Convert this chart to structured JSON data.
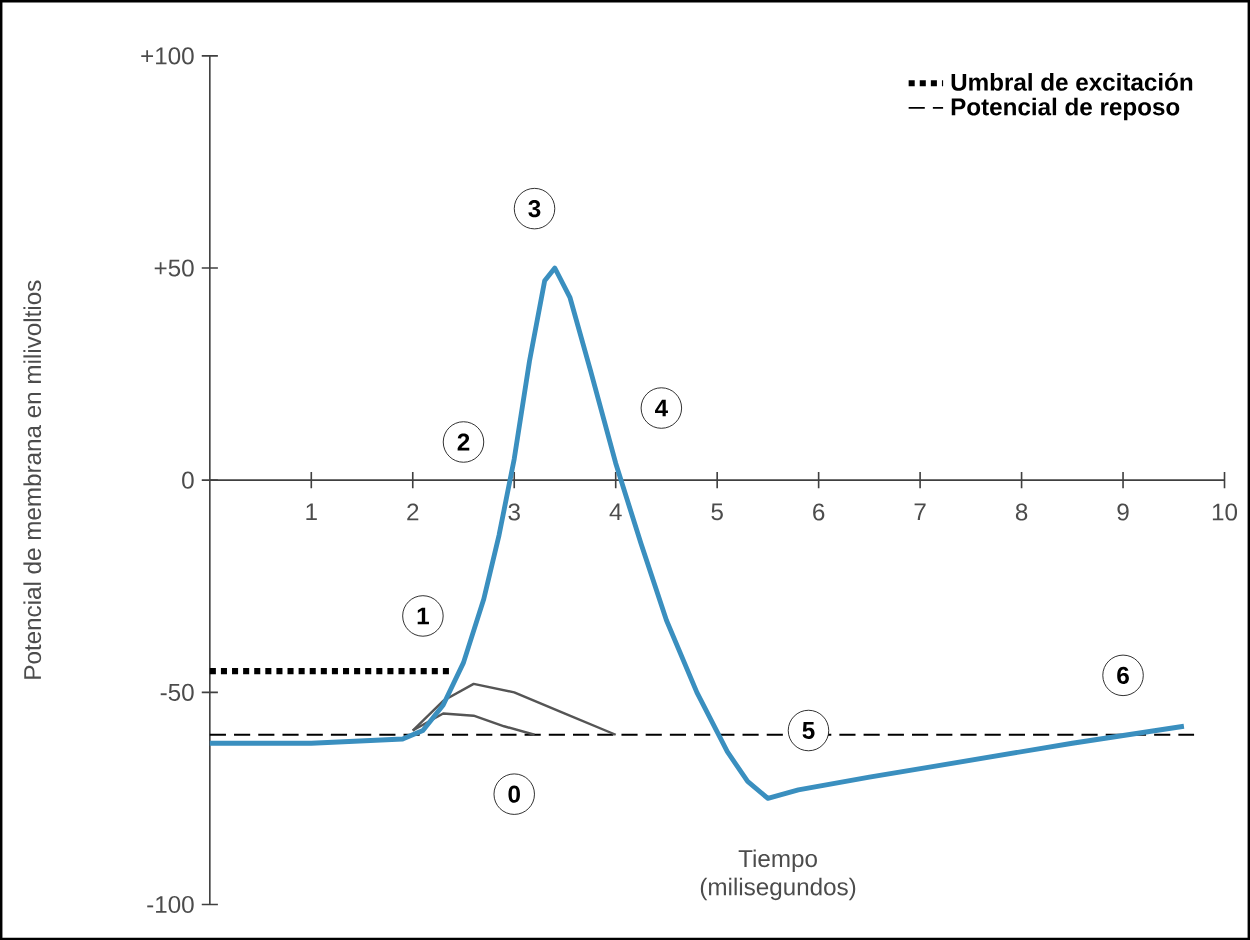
{
  "chart_data": {
    "type": "line",
    "xlabel": "Tiempo (milisegundos)",
    "ylabel": "Potencial de membrana en milivoltios",
    "xlim": [
      0,
      10
    ],
    "ylim": [
      -100,
      100
    ],
    "xticks": [
      1,
      2,
      3,
      4,
      5,
      6,
      7,
      8,
      9,
      10
    ],
    "yticks": [
      {
        "value": 100,
        "label": "+100"
      },
      {
        "value": 50,
        "label": "+50"
      },
      0,
      -50,
      -100
    ],
    "legend": "top right",
    "series": [
      {
        "name": "Umbral de excitación",
        "color": "#000000",
        "line_style": "dotted",
        "x": [
          0,
          2.4
        ],
        "values": [
          -45,
          -45
        ]
      },
      {
        "name": "Potencial de reposo",
        "color": "#000000",
        "line_style": "dashed",
        "x": [
          0,
          9.7
        ],
        "values": [
          -60,
          -60
        ]
      },
      {
        "color": "#555555",
        "x": [
          2.0,
          2.3,
          2.6,
          3.0,
          3.5,
          4.0
        ],
        "values": [
          -59,
          -52,
          -48,
          -50,
          -55,
          -60
        ]
      },
      {
        "color": "#555555",
        "x": [
          2.0,
          2.3,
          2.6,
          2.9,
          3.2
        ],
        "values": [
          -59,
          -55,
          -55.5,
          -58,
          -60
        ]
      },
      {
        "color": "#3a8fbf",
        "x": [
          0,
          1,
          1.9,
          2.1,
          2.3,
          2.5,
          2.7,
          2.85,
          3.0,
          3.15,
          3.3,
          3.4,
          3.55,
          3.75,
          4.0,
          4.25,
          4.5,
          4.8,
          5.1,
          5.3,
          5.5,
          5.8,
          6.5,
          7.5,
          8.5,
          9.6
        ],
        "values": [
          -62,
          -62,
          -61,
          -59,
          -53,
          -43,
          -28,
          -13,
          5,
          28,
          47,
          50,
          43,
          26,
          4,
          -15,
          -33,
          -50,
          -64,
          -71,
          -75,
          -73,
          -70,
          -66,
          -62,
          -58
        ]
      }
    ],
    "annotations": [
      {
        "text": "0",
        "x": 3.0,
        "y": -74
      },
      {
        "text": "1",
        "x": 2.1,
        "y": -32
      },
      {
        "text": "2",
        "x": 2.5,
        "y": 9
      },
      {
        "text": "3",
        "x": 3.2,
        "y": 64
      },
      {
        "text": "4",
        "x": 4.45,
        "y": 17
      },
      {
        "text": "5",
        "x": 5.9,
        "y": -59
      },
      {
        "text": "6",
        "x": 9.0,
        "y": -46
      }
    ]
  }
}
